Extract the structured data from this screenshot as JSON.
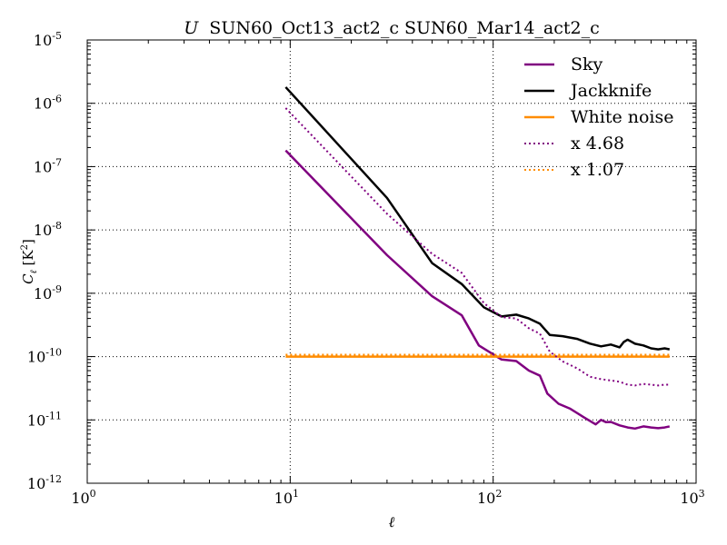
{
  "chart_data": {
    "type": "line",
    "title_prefix": "U",
    "title": "SUN60_Oct13_act2_c SUN60_Mar14_act2_c",
    "xlabel": "ℓ",
    "ylabel": "C_ℓ [K²]",
    "xscale": "log",
    "yscale": "log",
    "xlim": [
      1,
      1000
    ],
    "ylim": [
      1e-12,
      1e-05
    ],
    "x_ticks": [
      {
        "value": 1,
        "base": "10",
        "exp": "0"
      },
      {
        "value": 10,
        "base": "10",
        "exp": "1"
      },
      {
        "value": 100,
        "base": "10",
        "exp": "2"
      },
      {
        "value": 1000,
        "base": "10",
        "exp": "3"
      }
    ],
    "y_ticks": [
      {
        "value": 1e-12,
        "base": "10",
        "exp": "-12"
      },
      {
        "value": 1e-11,
        "base": "10",
        "exp": "-11"
      },
      {
        "value": 1e-10,
        "base": "10",
        "exp": "-10"
      },
      {
        "value": 1e-09,
        "base": "10",
        "exp": "-9"
      },
      {
        "value": 1e-08,
        "base": "10",
        "exp": "-8"
      },
      {
        "value": 1e-07,
        "base": "10",
        "exp": "-7"
      },
      {
        "value": 1e-06,
        "base": "10",
        "exp": "-6"
      },
      {
        "value": 1e-05,
        "base": "10",
        "exp": "-5"
      }
    ],
    "grid": true,
    "legend_position": "top-right",
    "series": [
      {
        "name": "Sky",
        "color": "#800080",
        "style": "solid",
        "x": [
          9.5,
          30,
          50,
          70,
          85,
          110,
          130,
          150,
          170,
          185,
          210,
          240,
          280,
          320,
          340,
          360,
          380,
          420,
          460,
          500,
          550,
          600,
          650,
          700,
          740
        ],
        "y": [
          1.8e-07,
          4e-09,
          9e-10,
          4.5e-10,
          1.5e-10,
          9e-11,
          8.5e-11,
          6e-11,
          5e-11,
          2.6e-11,
          1.8e-11,
          1.5e-11,
          1.1e-11,
          8.5e-12,
          1e-11,
          9.2e-12,
          9.3e-12,
          8.2e-12,
          7.6e-12,
          7.3e-12,
          7.9e-12,
          7.6e-12,
          7.4e-12,
          7.6e-12,
          7.9e-12
        ]
      },
      {
        "name": "Jackknife",
        "color": "#000000",
        "style": "solid",
        "x": [
          9.5,
          30,
          50,
          70,
          90,
          110,
          130,
          150,
          170,
          190,
          220,
          260,
          300,
          340,
          380,
          420,
          440,
          460,
          500,
          550,
          600,
          650,
          700,
          740
        ],
        "y": [
          1.8e-06,
          3.2e-08,
          3e-09,
          1.4e-09,
          6e-10,
          4.3e-10,
          4.6e-10,
          4e-10,
          3.3e-10,
          2.2e-10,
          2.1e-10,
          1.9e-10,
          1.6e-10,
          1.45e-10,
          1.55e-10,
          1.4e-10,
          1.7e-10,
          1.85e-10,
          1.6e-10,
          1.5e-10,
          1.35e-10,
          1.3e-10,
          1.35e-10,
          1.3e-10
        ]
      },
      {
        "name": "White noise",
        "color": "#ff8c00",
        "style": "solid",
        "x": [
          9.5,
          100,
          740
        ],
        "y": [
          1e-10,
          1e-10,
          1e-10
        ]
      },
      {
        "name": "x 4.68",
        "color": "#800080",
        "style": "dotted",
        "x": [
          9.5,
          30,
          50,
          70,
          90,
          110,
          130,
          150,
          170,
          190,
          220,
          260,
          300,
          340,
          380,
          420,
          460,
          500,
          550,
          600,
          650,
          700,
          740
        ],
        "y": [
          8.4e-07,
          1.8e-08,
          4.2e-09,
          2.1e-09,
          7e-10,
          4.2e-10,
          4e-10,
          2.8e-10,
          2.3e-10,
          1.2e-10,
          8.4e-11,
          6.5e-11,
          4.8e-11,
          4.4e-11,
          4.2e-11,
          4e-11,
          3.6e-11,
          3.5e-11,
          3.7e-11,
          3.6e-11,
          3.5e-11,
          3.6e-11,
          3.6e-11
        ]
      },
      {
        "name": "x 1.07",
        "color": "#ff8c00",
        "style": "dotted",
        "x": [
          9.5,
          100,
          740
        ],
        "y": [
          1.07e-10,
          1.07e-10,
          1.07e-10
        ]
      }
    ]
  }
}
